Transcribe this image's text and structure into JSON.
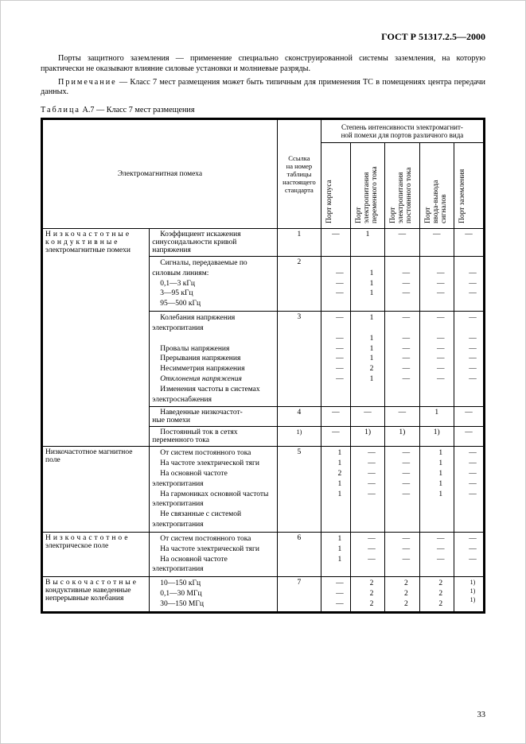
{
  "docId": "ГОСТ Р 51317.2.5—2000",
  "para1": "Порты защитного заземления — применение специально сконструированной системы заземления, на которую практически не оказывают влияние силовые установки и молниевые разряды.",
  "noteLabel": "Примечание",
  "noteText": " — Класс 7 мест размещения может быть типичным для применения ТС в помещениях центра передачи данных.",
  "tableLabel": "Таблица",
  "tableNo": "  А.7 — Класс 7 мест размещения",
  "head": {
    "col1": "Электромагнитная помеха",
    "col2": "Ссылка\nна номер\nтаблицы\nнастоящего\nстандарта",
    "colGroup": "Степень интенсивности электромагнит-\nной помехи для портов различного вида",
    "p1": "Порт корпуса",
    "p2": "Порт\nэлектропитания\nпеременного тока",
    "p3": "Порт\nэлектропитания\nпостоянного тока",
    "p4": "Порт\nввода-вывода\nсигналов",
    "p5": "Порт заземления"
  },
  "rows": [
    {
      "cat": "Низкочастотные\nкондуктивные\nэлектромагнитные помехи",
      "desc": "Коэффициент искажения синусоидальности кривой напряжения",
      "ref": "1",
      "cells": [
        "—",
        "1",
        "—",
        "—",
        "—"
      ]
    },
    {
      "desc": "Сигналы, передаваемые по силовым линиям:",
      "ref": "2",
      "sub": [
        "0,1—3 кГц",
        "3—95 кГц",
        "95—500 кГц"
      ],
      "subcells": [
        [
          "—",
          "1",
          "—",
          "—",
          "—"
        ],
        [
          "—",
          "1",
          "—",
          "—",
          "—"
        ],
        [
          "—",
          "1",
          "—",
          "—",
          "—"
        ]
      ]
    },
    {
      "desc": "Колебания напряжения электропитания",
      "ref": "3",
      "cells": [
        "—",
        "1",
        "—",
        "—",
        "—"
      ],
      "sub2": [
        "Провалы напряжения",
        "Прерывания напряжения",
        "Несимметрия напряжения",
        "Отклонения напряжения",
        "Изменения частоты в системах электроснабжения"
      ],
      "sub2cells": [
        [
          "—",
          "1",
          "—",
          "—",
          "—"
        ],
        [
          "—",
          "1",
          "—",
          "—",
          "—"
        ],
        [
          "—",
          "1",
          "—",
          "—",
          "—"
        ],
        [
          "—",
          "2",
          "—",
          "—",
          "—"
        ],
        [
          "—",
          "1",
          "—",
          "—",
          "—"
        ]
      ]
    },
    {
      "desc": "Наведенные низкочастот-\nные помехи",
      "ref": "4",
      "cells": [
        "—",
        "—",
        "—",
        "1",
        "—"
      ]
    },
    {
      "desc": "Постоянный ток в сетях переменного тока",
      "ref": "1)",
      "cells": [
        "—",
        "1)",
        "1)",
        "1)",
        "—"
      ]
    },
    {
      "cat": "Низкочастотное магнитное поле",
      "desc": "От систем постоянного тока",
      "ref": "5",
      "cells": [
        "1",
        "—",
        "—",
        "1",
        "—"
      ],
      "sub3": [
        "На частоте электрической тяги",
        "На основной частоте электропитания",
        "На гармониках основной частоты электропитания",
        "Не связанные с системой электропитания"
      ],
      "sub3cells": [
        [
          "1",
          "—",
          "—",
          "1",
          "—"
        ],
        [
          "2",
          "—",
          "—",
          "1",
          "—"
        ],
        [
          "1",
          "—",
          "—",
          "1",
          "—"
        ],
        [
          "1",
          "—",
          "—",
          "1",
          "—"
        ]
      ]
    },
    {
      "cat": "Низкочастотное\nэлектрическое поле",
      "desc": "От систем постоянного тока",
      "ref": "6",
      "cells": [
        "1",
        "—",
        "—",
        "—",
        "—"
      ],
      "sub4": [
        "На частоте электрической тяги",
        "На основной частоте электропитания"
      ],
      "sub4cells": [
        [
          "1",
          "—",
          "—",
          "—",
          "—"
        ],
        [
          "1",
          "—",
          "—",
          "—",
          "—"
        ]
      ]
    },
    {
      "cat": "Высокочастотные\nкондуктивные наведенные непрерывные колебания",
      "ref": "7",
      "sub5": [
        "10—150 кГц",
        "0,1—30 МГц",
        "30—150 МГц"
      ],
      "sub5cells": [
        [
          "—",
          "2",
          "2",
          "2",
          "1)"
        ],
        [
          "—",
          "2",
          "2",
          "2",
          "1)"
        ],
        [
          "—",
          "2",
          "2",
          "2",
          "1)"
        ]
      ]
    }
  ],
  "pageNo": "33"
}
